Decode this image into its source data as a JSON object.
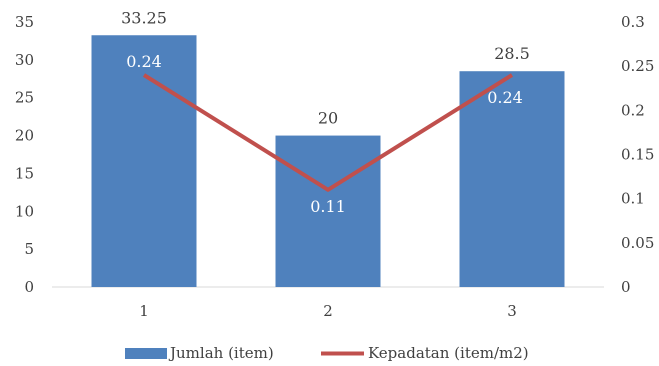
{
  "chart_data": {
    "type": "bar",
    "categories": [
      "1",
      "2",
      "3"
    ],
    "series": [
      {
        "name": "Jumlah (item)",
        "type": "bar",
        "axis": "left",
        "values": [
          33.25,
          20,
          28.5
        ],
        "labels": [
          "33.25",
          "20",
          "28.5"
        ],
        "color": "#4f81bd"
      },
      {
        "name": "Kepadatan (item/m2)",
        "type": "line",
        "axis": "right",
        "values": [
          0.24,
          0.11,
          0.24
        ],
        "labels": [
          "0.24",
          "0.11",
          "0.24"
        ],
        "color": "#c0504d"
      }
    ],
    "y_left": {
      "ylim": [
        0,
        35
      ],
      "ticks": [
        "0",
        "5",
        "10",
        "15",
        "20",
        "25",
        "30",
        "35"
      ]
    },
    "y_right": {
      "ylim": [
        0,
        0.3
      ],
      "ticks": [
        "0",
        "0.05",
        "0.1",
        "0.15",
        "0.2",
        "0.25",
        "0.3"
      ]
    },
    "grid": false,
    "legend": "bottom",
    "title": "",
    "xlabel": "",
    "ylabel": ""
  }
}
